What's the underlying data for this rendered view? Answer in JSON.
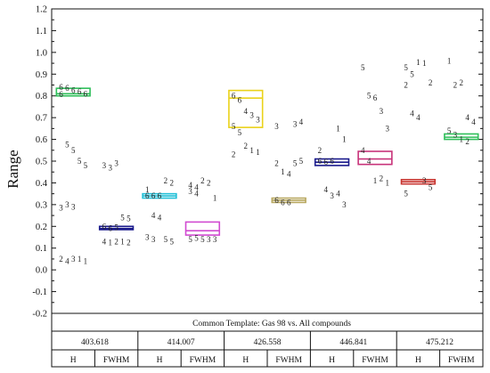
{
  "chart_data": {
    "type": "box",
    "ylabel": "Range",
    "ylim": [
      -0.2,
      1.2
    ],
    "yticks": [
      "-0.2",
      "-0.1",
      "0.0",
      "0.1",
      "0.2",
      "0.3",
      "0.4",
      "0.5",
      "0.6",
      "0.7",
      "0.8",
      "0.9",
      "1.0",
      "1.1",
      "1.2"
    ],
    "category_title": "Common Template: Gas 98 vs. All compounds",
    "groups": [
      "403.618",
      "414.007",
      "426.558",
      "446.841",
      "475.212"
    ],
    "subgroups": [
      "H",
      "FWHM",
      "H",
      "FWHM",
      "H",
      "FWHM",
      "H",
      "FWHM",
      "H",
      "FWHM"
    ],
    "boxes": [
      {
        "group": "403.618",
        "sub": "H",
        "q1": 0.8,
        "median": 0.81,
        "q3": 0.835,
        "color": "#2fbf5a",
        "points": [
          [
            "6",
            0.84
          ],
          [
            "6",
            0.835
          ],
          [
            "6",
            0.825
          ],
          [
            "6",
            0.82
          ],
          [
            "6",
            0.81
          ],
          [
            "6",
            0.808
          ],
          [
            "5",
            0.575
          ],
          [
            "5",
            0.55
          ],
          [
            "5",
            0.5
          ],
          [
            "5",
            0.48
          ],
          [
            "3",
            0.285
          ],
          [
            "3",
            0.3
          ],
          [
            "3",
            0.29
          ],
          [
            "1",
            0.05
          ],
          [
            "1",
            0.04
          ],
          [
            "2",
            0.05
          ],
          [
            "4",
            0.04
          ],
          [
            "3",
            0.05
          ]
        ]
      },
      {
        "group": "403.618",
        "sub": "FWHM",
        "q1": 0.185,
        "median": 0.19,
        "q3": 0.2,
        "color": "#1a1a8c",
        "points": [
          [
            "6",
            0.2
          ],
          [
            "6",
            0.19
          ],
          [
            "5",
            0.195
          ],
          [
            "5",
            0.24
          ],
          [
            "5",
            0.235
          ],
          [
            "3",
            0.48
          ],
          [
            "3",
            0.47
          ],
          [
            "3",
            0.49
          ],
          [
            "1",
            0.13
          ],
          [
            "2",
            0.125
          ],
          [
            "4",
            0.13
          ],
          [
            "1",
            0.125
          ],
          [
            "2",
            0.13
          ]
        ]
      },
      {
        "group": "414.007",
        "sub": "H",
        "q1": 0.33,
        "median": 0.34,
        "q3": 0.35,
        "color": "#22c0d8",
        "points": [
          [
            "6",
            0.34
          ],
          [
            "6",
            0.34
          ],
          [
            "6",
            0.34
          ],
          [
            "2",
            0.41
          ],
          [
            "2",
            0.4
          ],
          [
            "1",
            0.37
          ],
          [
            "4",
            0.25
          ],
          [
            "4",
            0.24
          ],
          [
            "5",
            0.14
          ],
          [
            "5",
            0.13
          ],
          [
            "3",
            0.15
          ],
          [
            "3",
            0.14
          ]
        ]
      },
      {
        "group": "414.007",
        "sub": "FWHM",
        "q1": 0.16,
        "median": 0.18,
        "q3": 0.22,
        "color": "#d14bd1",
        "points": [
          [
            "5",
            0.14
          ],
          [
            "5",
            0.145
          ],
          [
            "5",
            0.14
          ],
          [
            "3",
            0.14
          ],
          [
            "3",
            0.14
          ],
          [
            "4",
            0.39
          ],
          [
            "4",
            0.38
          ],
          [
            "2",
            0.41
          ],
          [
            "2",
            0.4
          ],
          [
            "1",
            0.33
          ],
          [
            "3",
            0.36
          ],
          [
            "4",
            0.35
          ]
        ]
      },
      {
        "group": "426.558",
        "sub": "H",
        "q1": 0.655,
        "median": 0.79,
        "q3": 0.825,
        "color": "#ead21a",
        "points": [
          [
            "6",
            0.8
          ],
          [
            "6",
            0.78
          ],
          [
            "4",
            0.73
          ],
          [
            "3",
            0.71
          ],
          [
            "3",
            0.69
          ],
          [
            "5",
            0.66
          ],
          [
            "5",
            0.63
          ],
          [
            "2",
            0.57
          ],
          [
            "1",
            0.55
          ],
          [
            "1",
            0.54
          ],
          [
            "2",
            0.53
          ]
        ]
      },
      {
        "group": "426.558",
        "sub": "FWHM",
        "q1": 0.31,
        "median": 0.32,
        "q3": 0.33,
        "color": "#b8a860",
        "points": [
          [
            "6",
            0.32
          ],
          [
            "6",
            0.31
          ],
          [
            "6",
            0.31
          ],
          [
            "5",
            0.49
          ],
          [
            "5",
            0.5
          ],
          [
            "2",
            0.49
          ],
          [
            "1",
            0.45
          ],
          [
            "4",
            0.44
          ],
          [
            "3",
            0.67
          ],
          [
            "4",
            0.68
          ],
          [
            "3",
            0.66
          ]
        ]
      },
      {
        "group": "446.841",
        "sub": "H",
        "q1": 0.48,
        "median": 0.495,
        "q3": 0.51,
        "color": "#1a1a8c",
        "points": [
          [
            "6",
            0.5
          ],
          [
            "6",
            0.495
          ],
          [
            "6",
            0.5
          ],
          [
            "1",
            0.65
          ],
          [
            "1",
            0.6
          ],
          [
            "2",
            0.55
          ],
          [
            "4",
            0.37
          ],
          [
            "3",
            0.34
          ],
          [
            "4",
            0.35
          ],
          [
            "3",
            0.3
          ]
        ]
      },
      {
        "group": "446.841",
        "sub": "FWHM",
        "q1": 0.485,
        "median": 0.51,
        "q3": 0.545,
        "color": "#c8337a",
        "points": [
          [
            "5",
            0.93
          ],
          [
            "5",
            0.8
          ],
          [
            "6",
            0.79
          ],
          [
            "3",
            0.73
          ],
          [
            "3",
            0.65
          ],
          [
            "4",
            0.55
          ],
          [
            "4",
            0.5
          ],
          [
            "1",
            0.41
          ],
          [
            "2",
            0.42
          ],
          [
            "1",
            0.4
          ]
        ]
      },
      {
        "group": "475.212",
        "sub": "H",
        "q1": 0.395,
        "median": 0.405,
        "q3": 0.415,
        "color": "#c8342f",
        "points": [
          [
            "5",
            0.93
          ],
          [
            "5",
            0.9
          ],
          [
            "1",
            0.955
          ],
          [
            "1",
            0.95
          ],
          [
            "2",
            0.86
          ],
          [
            "2",
            0.85
          ],
          [
            "4",
            0.72
          ],
          [
            "4",
            0.7
          ],
          [
            "3",
            0.41
          ],
          [
            "5",
            0.38
          ],
          [
            "5",
            0.35
          ]
        ]
      },
      {
        "group": "475.212",
        "sub": "FWHM",
        "q1": 0.6,
        "median": 0.61,
        "q3": 0.625,
        "color": "#2fbf5a",
        "points": [
          [
            "1",
            0.96
          ],
          [
            "2",
            0.85
          ],
          [
            "2",
            0.86
          ],
          [
            "4",
            0.7
          ],
          [
            "4",
            0.68
          ],
          [
            "5",
            0.64
          ],
          [
            "3",
            0.62
          ],
          [
            "1",
            0.6
          ],
          [
            "2",
            0.59
          ]
        ]
      }
    ]
  }
}
